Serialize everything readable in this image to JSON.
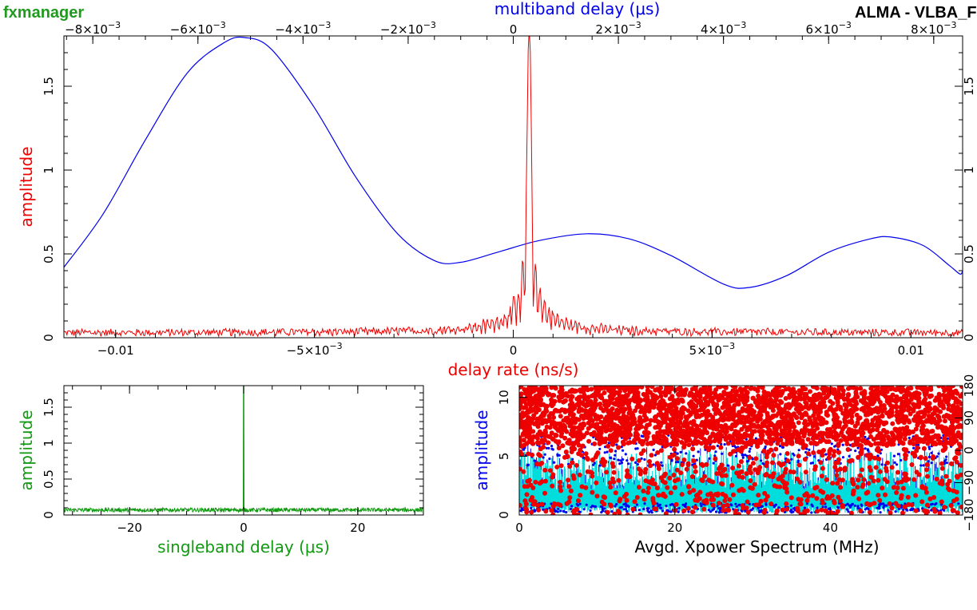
{
  "header": {
    "left_title": "fxmanager",
    "right_title": "ALMA - VLBA_FD",
    "left_color": "#1f9a1f",
    "right_color": "#000000"
  },
  "colors": {
    "red": "#ee0000",
    "blue": "#0000ee",
    "green": "#119911",
    "cyan": "#00dddd",
    "black": "#000000"
  },
  "chart_data": [
    {
      "id": "main",
      "type": "line",
      "bottom_axis": {
        "label": "delay rate (ns/s)",
        "color": "#ee0000",
        "range": [
          -0.0113,
          0.0113
        ],
        "ticks": [
          {
            "v": -0.01,
            "t": "−0.01"
          },
          {
            "v": -0.005,
            "t": "−5×10",
            "sup": "−3"
          },
          {
            "v": 0,
            "t": "0"
          },
          {
            "v": 0.005,
            "t": "5×10",
            "sup": "−3"
          },
          {
            "v": 0.01,
            "t": "0.01"
          }
        ]
      },
      "top_axis": {
        "label": "multiband delay (μs)",
        "color": "#0000ee",
        "range": [
          -0.00855,
          0.00855
        ],
        "ticks": [
          {
            "v": -0.008,
            "t": "−8×10",
            "sup": "−3"
          },
          {
            "v": -0.006,
            "t": "−6×10",
            "sup": "−3"
          },
          {
            "v": -0.004,
            "t": "−4×10",
            "sup": "−3"
          },
          {
            "v": -0.002,
            "t": "−2×10",
            "sup": "−3"
          },
          {
            "v": 0,
            "t": "0"
          },
          {
            "v": 0.002,
            "t": "2×10",
            "sup": "−3"
          },
          {
            "v": 0.004,
            "t": "4×10",
            "sup": "−3"
          },
          {
            "v": 0.006,
            "t": "6×10",
            "sup": "−3"
          },
          {
            "v": 0.008,
            "t": "8×10",
            "sup": "−3"
          }
        ]
      },
      "left_axis": {
        "label": "amplitude",
        "color": "#ee0000",
        "range": [
          0,
          1.8
        ],
        "ticks": [
          {
            "v": 0,
            "t": "0"
          },
          {
            "v": 0.5,
            "t": "0.5"
          },
          {
            "v": 1,
            "t": "1"
          },
          {
            "v": 1.5,
            "t": "1.5"
          }
        ]
      },
      "right_axis": {
        "range": [
          0,
          1.8
        ],
        "ticks": [
          {
            "v": 0,
            "t": "0"
          },
          {
            "v": 0.5,
            "t": "0.5"
          },
          {
            "v": 1,
            "t": "1"
          },
          {
            "v": 1.5,
            "t": "1.5"
          }
        ]
      },
      "series": [
        {
          "axis": "top",
          "color": "#0000ee",
          "points": [
            [
              -0.00855,
              0.42
            ],
            [
              -0.0078,
              0.74
            ],
            [
              -0.007,
              1.18
            ],
            [
              -0.0062,
              1.58
            ],
            [
              -0.0055,
              1.76
            ],
            [
              -0.0051,
              1.79
            ],
            [
              -0.0046,
              1.72
            ],
            [
              -0.0038,
              1.38
            ],
            [
              -0.003,
              0.96
            ],
            [
              -0.0022,
              0.62
            ],
            [
              -0.0015,
              0.46
            ],
            [
              -0.001,
              0.45
            ],
            [
              -0.0003,
              0.51
            ],
            [
              0.0005,
              0.58
            ],
            [
              0.0014,
              0.62
            ],
            [
              0.0022,
              0.59
            ],
            [
              0.003,
              0.49
            ],
            [
              0.004,
              0.32
            ],
            [
              0.0045,
              0.3
            ],
            [
              0.0052,
              0.37
            ],
            [
              0.006,
              0.51
            ],
            [
              0.0068,
              0.59
            ],
            [
              0.0072,
              0.6
            ],
            [
              0.0078,
              0.55
            ],
            [
              0.0083,
              0.43
            ],
            [
              0.0085,
              0.38
            ],
            [
              0.00855,
              0.4
            ]
          ]
        },
        {
          "axis": "bottom",
          "color": "#ee0000",
          "noise_level": 0.03,
          "peak_center": 0.0004,
          "peak_amplitude": 1.78
        }
      ]
    },
    {
      "id": "singleband",
      "type": "line",
      "bottom_axis": {
        "label": "singleband delay (μs)",
        "color": "#119911",
        "range": [
          -31.5,
          31.5
        ],
        "ticks": [
          {
            "v": -20,
            "t": "−20"
          },
          {
            "v": 0,
            "t": "0"
          },
          {
            "v": 20,
            "t": "20"
          }
        ]
      },
      "left_axis": {
        "label": "amplitude",
        "color": "#119911",
        "range": [
          0,
          1.8
        ],
        "ticks": [
          {
            "v": 0,
            "t": "0"
          },
          {
            "v": 0.5,
            "t": "0.5"
          },
          {
            "v": 1,
            "t": "1"
          },
          {
            "v": 1.5,
            "t": "1.5"
          }
        ]
      },
      "series": [
        {
          "color": "#119911",
          "noise_level": 0.07,
          "peak_center": 0,
          "peak_amplitude": 1.8
        }
      ]
    },
    {
      "id": "spectrum",
      "type": "scatter",
      "bottom_axis": {
        "label": "Avgd. Xpower Spectrum (MHz)",
        "color": "#000000",
        "range": [
          0,
          57
        ],
        "ticks": [
          {
            "v": 0,
            "t": "0"
          },
          {
            "v": 20,
            "t": "20"
          },
          {
            "v": 40,
            "t": "40"
          }
        ]
      },
      "left_axis": {
        "label": "amplitude",
        "color": "#0000ee",
        "range": [
          0,
          11
        ],
        "ticks": [
          {
            "v": 0,
            "t": "0"
          },
          {
            "v": 5,
            "t": "5"
          },
          {
            "v": 10,
            "t": "10"
          }
        ]
      },
      "right_axis": {
        "range": [
          -180,
          180
        ],
        "ticks": [
          {
            "v": -180,
            "t": "−180"
          },
          {
            "v": -90,
            "t": "−90"
          },
          {
            "v": 0,
            "t": "0"
          },
          {
            "v": 90,
            "t": "90"
          },
          {
            "v": 180,
            "t": "180"
          }
        ]
      },
      "series": [
        {
          "name_ref": "amplitude",
          "color": "#00dddd",
          "edge_color": "#0000ee",
          "fill_max": 4.8
        },
        {
          "name_ref": "phase",
          "color": "#ee0000",
          "dense_range": [
            6,
            11
          ],
          "sparse_range": [
            0,
            6
          ]
        }
      ]
    }
  ]
}
